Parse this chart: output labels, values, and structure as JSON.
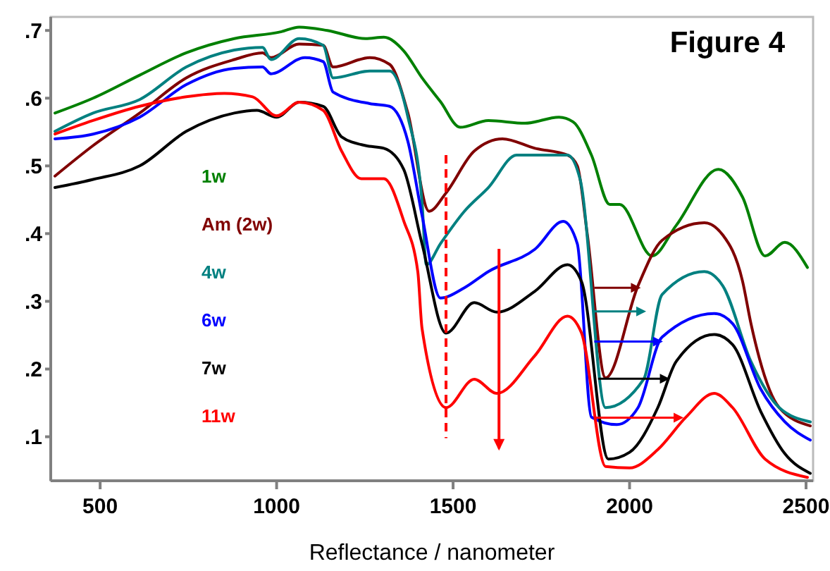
{
  "chart_data": {
    "type": "line",
    "title": "Figure 4",
    "xlabel": "Reflectance / nanometer",
    "xlim": [
      360,
      2520
    ],
    "ylim": [
      0.035,
      0.72
    ],
    "xticks": [
      500,
      1000,
      1500,
      2000,
      2500
    ],
    "yticks": [
      {
        "value": 0.1,
        "label": ".1"
      },
      {
        "value": 0.2,
        "label": ".2"
      },
      {
        "value": 0.3,
        "label": ".3"
      },
      {
        "value": 0.4,
        "label": ".4"
      },
      {
        "value": 0.5,
        "label": ".5"
      },
      {
        "value": 0.6,
        "label": ".6"
      },
      {
        "value": 0.7,
        "label": ".7"
      }
    ],
    "ref_lines": [
      {
        "axis": "x",
        "value": 1480,
        "color": "#ff0000",
        "line_style": "dashed"
      }
    ],
    "legend": "left",
    "grid": false,
    "marker": "none",
    "line_style": "solid",
    "series": [
      {
        "name": "1w",
        "color": "#008000",
        "x": [
          372,
          480,
          612,
          744,
          880,
          1012,
          1064,
          1144,
          1252,
          1304,
          1360,
          1412,
          1464,
          1520,
          1600,
          1704,
          1800,
          1840,
          1892,
          1944,
          1972,
          2064,
          2132,
          2252,
          2320,
          2384,
          2440,
          2504
        ],
        "values": [
          0.578,
          0.6,
          0.634,
          0.667,
          0.688,
          0.698,
          0.705,
          0.7,
          0.688,
          0.69,
          0.67,
          0.63,
          0.595,
          0.557,
          0.567,
          0.563,
          0.572,
          0.565,
          0.516,
          0.443,
          0.443,
          0.367,
          0.412,
          0.495,
          0.454,
          0.367,
          0.387,
          0.35
        ]
      },
      {
        "name": "Am (2w)",
        "color": "#800000",
        "x": [
          372,
          480,
          612,
          744,
          880,
          960,
          984,
          1064,
          1132,
          1160,
          1264,
          1320,
          1372,
          1432,
          1480,
          1560,
          1640,
          1732,
          1824,
          1852,
          1880,
          1932,
          2024,
          2092,
          2212,
          2264,
          2320,
          2344,
          2424,
          2512
        ],
        "values": [
          0.485,
          0.53,
          0.578,
          0.63,
          0.657,
          0.667,
          0.66,
          0.68,
          0.678,
          0.646,
          0.66,
          0.65,
          0.578,
          0.433,
          0.46,
          0.522,
          0.54,
          0.526,
          0.516,
          0.5,
          0.4,
          0.187,
          0.323,
          0.39,
          0.416,
          0.398,
          0.33,
          0.267,
          0.143,
          0.116
        ]
      },
      {
        "name": "4w",
        "color": "#008080",
        "x": [
          372,
          480,
          612,
          744,
          880,
          960,
          984,
          1064,
          1132,
          1160,
          1264,
          1320,
          1372,
          1412,
          1424,
          1464,
          1532,
          1600,
          1680,
          1824,
          1860,
          1932,
          2040,
          2092,
          2212,
          2264,
          2344,
          2424,
          2512
        ],
        "values": [
          0.551,
          0.578,
          0.598,
          0.646,
          0.671,
          0.675,
          0.657,
          0.688,
          0.678,
          0.63,
          0.64,
          0.64,
          0.572,
          0.447,
          0.354,
          0.385,
          0.433,
          0.468,
          0.516,
          0.516,
          0.48,
          0.143,
          0.185,
          0.31,
          0.344,
          0.323,
          0.211,
          0.143,
          0.122
        ]
      },
      {
        "name": "6w",
        "color": "#0000ff",
        "x": [
          372,
          480,
          612,
          744,
          880,
          960,
          984,
          1080,
          1132,
          1160,
          1264,
          1320,
          1372,
          1412,
          1464,
          1532,
          1600,
          1732,
          1812,
          1852,
          1892,
          1964,
          2024,
          2092,
          2240,
          2292,
          2372,
          2440,
          2512
        ],
        "values": [
          0.54,
          0.547,
          0.572,
          0.62,
          0.644,
          0.646,
          0.636,
          0.66,
          0.654,
          0.609,
          0.592,
          0.588,
          0.536,
          0.427,
          0.305,
          0.32,
          0.344,
          0.377,
          0.418,
          0.385,
          0.129,
          0.118,
          0.143,
          0.247,
          0.282,
          0.267,
          0.17,
          0.122,
          0.095
        ]
      },
      {
        "name": "7w",
        "color": "#000000",
        "x": [
          372,
          480,
          612,
          744,
          880,
          944,
          1000,
          1064,
          1132,
          1184,
          1252,
          1304,
          1360,
          1412,
          1480,
          1560,
          1624,
          1732,
          1824,
          1864,
          1940,
          2000,
          2080,
          2132,
          2240,
          2292,
          2372,
          2440,
          2512
        ],
        "values": [
          0.468,
          0.48,
          0.5,
          0.551,
          0.578,
          0.582,
          0.572,
          0.594,
          0.588,
          0.543,
          0.53,
          0.526,
          0.495,
          0.385,
          0.253,
          0.298,
          0.284,
          0.315,
          0.354,
          0.329,
          0.067,
          0.077,
          0.143,
          0.211,
          0.251,
          0.236,
          0.137,
          0.075,
          0.046
        ]
      },
      {
        "name": "11w",
        "color": "#ff0000",
        "x": [
          372,
          480,
          612,
          744,
          852,
          932,
          1000,
          1064,
          1132,
          1184,
          1240,
          1304,
          1360,
          1400,
          1412,
          1480,
          1560,
          1624,
          1732,
          1824,
          1864,
          1932,
          2000,
          2080,
          2160,
          2240,
          2292,
          2384,
          2504
        ],
        "values": [
          0.547,
          0.567,
          0.588,
          0.602,
          0.607,
          0.602,
          0.574,
          0.594,
          0.582,
          0.522,
          0.481,
          0.481,
          0.419,
          0.344,
          0.26,
          0.143,
          0.185,
          0.164,
          0.22,
          0.278,
          0.253,
          0.056,
          0.054,
          0.081,
          0.129,
          0.164,
          0.143,
          0.067,
          0.04
        ]
      }
    ]
  }
}
